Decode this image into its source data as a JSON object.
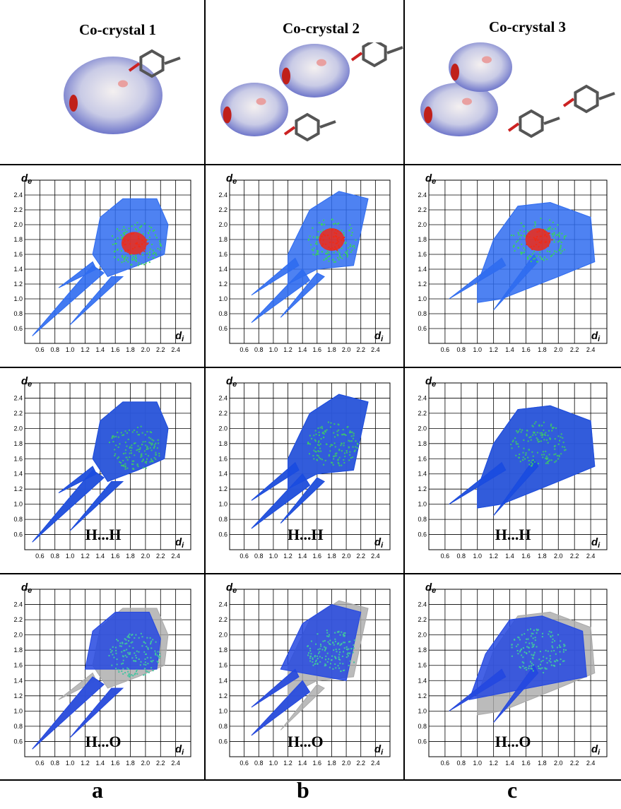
{
  "columns": [
    {
      "title": "Co-crystal 1",
      "label": "a"
    },
    {
      "title": "Co-crystal 2",
      "label": "b"
    },
    {
      "title": "Co-crystal 3",
      "label": "c"
    }
  ],
  "plot_axes": {
    "y_label": {
      "base": "d",
      "sub": "e"
    },
    "x_label": {
      "base": "d",
      "sub": "i"
    },
    "ticks": [
      "0.6",
      "0.8",
      "1.0",
      "1.2",
      "1.4",
      "1.6",
      "1.8",
      "2.0",
      "2.2",
      "2.4"
    ]
  },
  "plot_rows": [
    {
      "contact": null
    },
    {
      "contact": "H...H"
    },
    {
      "contact": "H...O"
    }
  ]
}
